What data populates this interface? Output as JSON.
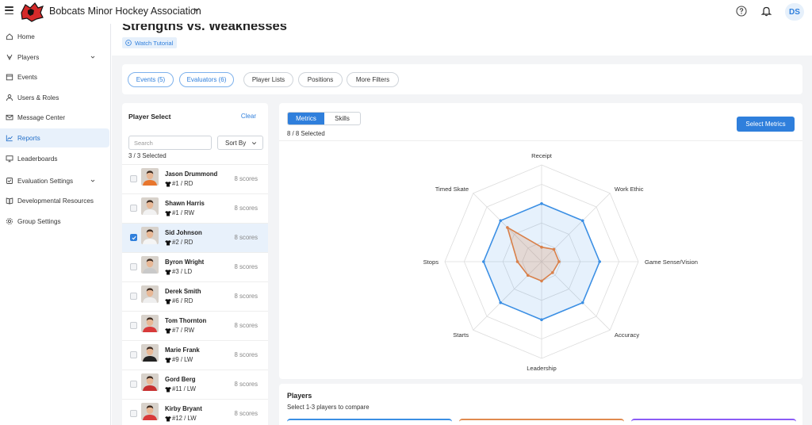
{
  "header": {
    "org_name": "Bobcats Minor Hockey Association",
    "avatar_initials": "DS"
  },
  "sidebar": {
    "items": [
      {
        "label": "Home",
        "icon": "home-icon"
      },
      {
        "label": "Players",
        "icon": "players-icon",
        "expandable": true
      },
      {
        "label": "Events",
        "icon": "calendar-icon"
      },
      {
        "label": "Users & Roles",
        "icon": "user-icon"
      },
      {
        "label": "Message Center",
        "icon": "mail-icon"
      },
      {
        "label": "Reports",
        "icon": "chart-icon",
        "active": true
      },
      {
        "label": "Leaderboards",
        "icon": "monitor-icon"
      },
      {
        "label": "Evaluation Settings",
        "icon": "gear-icon",
        "expandable": true
      },
      {
        "label": "Developmental Resources",
        "icon": "book-icon"
      },
      {
        "label": "Group Settings",
        "icon": "settings-icon"
      }
    ]
  },
  "page": {
    "title": "Strengths vs. Weaknesses",
    "tutorial_label": "Watch Tutorial"
  },
  "filters": {
    "events": "Events (5)",
    "evaluators": "Evaluators (6)",
    "player_lists": "Player Lists",
    "positions": "Positions",
    "more_filters": "More Filters"
  },
  "player_select": {
    "title": "Player Select",
    "clear_label": "Clear",
    "search_placeholder": "Search",
    "sort_label": "Sort By",
    "count_text": "3 / 3 Selected",
    "players": [
      {
        "name": "Jason Drummond",
        "position": "#1 / RD",
        "scores": "8 scores",
        "selected": false
      },
      {
        "name": "Shawn Harris",
        "position": "#1 / RW",
        "scores": "8 scores",
        "selected": false
      },
      {
        "name": "Sid Johnson",
        "position": "#2 / RD",
        "scores": "8 scores",
        "selected": true
      },
      {
        "name": "Byron Wright",
        "position": "#3 / LD",
        "scores": "8 scores",
        "selected": false
      },
      {
        "name": "Derek Smith",
        "position": "#6 / RD",
        "scores": "8 scores",
        "selected": false
      },
      {
        "name": "Tom Thornton",
        "position": "#7 / RW",
        "scores": "8 scores",
        "selected": false
      },
      {
        "name": "Marie Frank",
        "position": "#9 / LW",
        "scores": "8 scores",
        "selected": false
      },
      {
        "name": "Gord Berg",
        "position": "#11 / LW",
        "scores": "8 scores",
        "selected": false
      },
      {
        "name": "Kirby Bryant",
        "position": "#12 / LW",
        "scores": "8 scores",
        "selected": false
      }
    ]
  },
  "chart_panel": {
    "tabs": [
      "Metrics",
      "Skills"
    ],
    "active_tab": "Metrics",
    "count_text": "8 / 8 Selected",
    "select_button": "Select Metrics"
  },
  "chart_data": {
    "type": "radar",
    "axes": [
      "Receipt",
      "Work Ethic",
      "Game Sense/Vision",
      "Accuracy",
      "Leadership",
      "Starts",
      "Stops",
      "Timed Skate"
    ],
    "rings": 5,
    "series": [
      {
        "color": "#3b8fe4",
        "fill": "rgba(59,143,228,0.13)",
        "values": [
          0.6,
          0.6,
          0.6,
          0.6,
          0.6,
          0.6,
          0.6,
          0.6
        ]
      },
      {
        "color": "#d9804a",
        "fill": "rgba(217,128,74,0.22)",
        "values": [
          0.15,
          0.18,
          0.18,
          0.16,
          0.2,
          0.2,
          0.25,
          0.5
        ]
      }
    ]
  },
  "compare": {
    "title": "Players",
    "subtitle": "Select 1-3 players to compare",
    "slot_colors": [
      "#3b8fe4",
      "#e08a4f",
      "#8b5cf6"
    ]
  }
}
